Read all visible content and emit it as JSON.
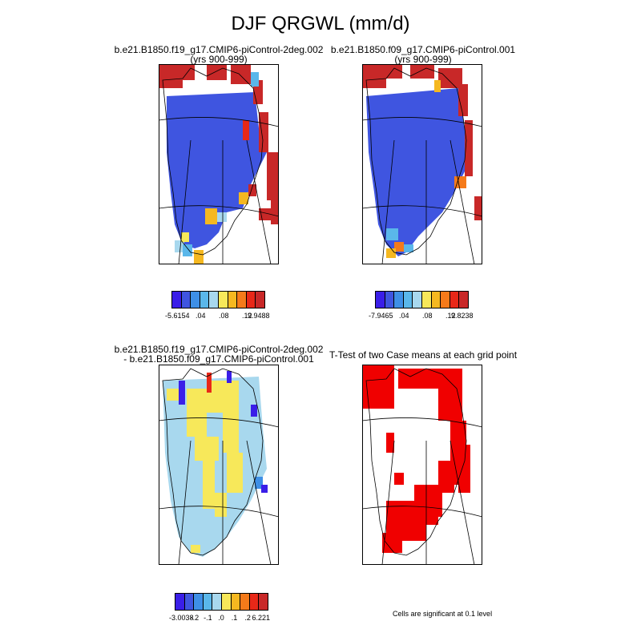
{
  "title": "DJF QRGWL (mm/d)",
  "panels": [
    {
      "title1": "b.e21.B1850.f19_g17.CMIP6-piControl-2deg.002",
      "title2": "(yrs 900-999)"
    },
    {
      "title1": "b.e21.B1850.f09_g17.CMIP6-piControl.001",
      "title2": "(yrs 900-999)"
    },
    {
      "title1": "b.e21.B1850.f19_g17.CMIP6-piControl-2deg.002",
      "title2": "- b.e21.B1850.f09_g17.CMIP6-piControl.001"
    },
    {
      "title1": "T-Test of two Case means at each grid point",
      "title2": ""
    }
  ],
  "colorbars": [
    {
      "colors": [
        "#3a1ee8",
        "#3f55e0",
        "#3e8fe6",
        "#5ab7ea",
        "#a8d8ee",
        "#f7e85a",
        "#f5b820",
        "#f57a1a",
        "#e82818",
        "#c82828"
      ],
      "labels": [
        "-5.6154",
        "",
        ".04",
        "",
        ".08",
        "",
        ".12",
        "9.9488"
      ]
    },
    {
      "colors": [
        "#3a1ee8",
        "#3f55e0",
        "#3e8fe6",
        "#5ab7ea",
        "#a8d8ee",
        "#f7e85a",
        "#f5b820",
        "#f57a1a",
        "#e82818",
        "#c82828"
      ],
      "labels": [
        "-7.9465",
        "",
        ".04",
        "",
        ".08",
        "",
        ".12",
        "9.8238"
      ]
    },
    {
      "colors": [
        "#3a1ee8",
        "#3f55e0",
        "#3e8fe6",
        "#5ab7ea",
        "#a8d8ee",
        "#f7e85a",
        "#f5b820",
        "#f57a1a",
        "#e82818",
        "#c82828"
      ],
      "labels": [
        "-3.0038",
        "-.2",
        "-.1",
        ".0",
        ".1",
        ".2",
        "6.221"
      ]
    }
  ],
  "note": "Cells are significant at 0.1 level"
}
